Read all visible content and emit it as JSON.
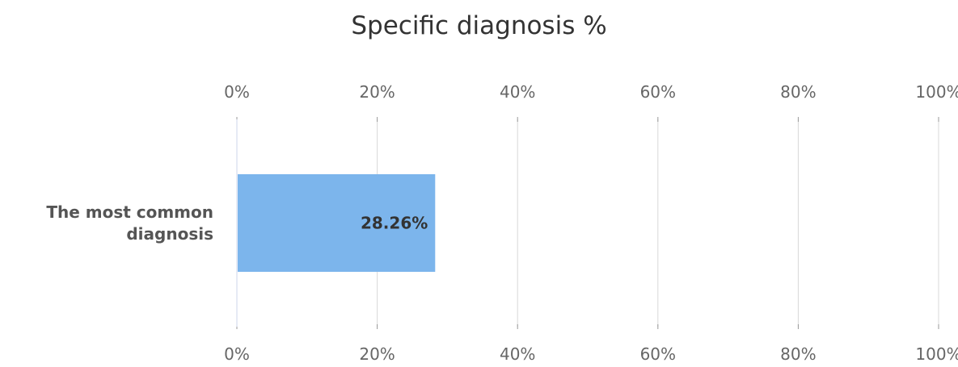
{
  "chart_data": {
    "type": "bar",
    "orientation": "horizontal",
    "title": "Specific diagnosis %",
    "categories": [
      [
        "The most common",
        "diagnosis"
      ]
    ],
    "values": [
      28.26
    ],
    "data_labels": [
      "28.26%"
    ],
    "xlim": [
      0,
      100
    ],
    "x_ticks": [
      "0%",
      "20%",
      "40%",
      "60%",
      "80%",
      "100%"
    ],
    "x_axis_position": "top and bottom",
    "grid": true,
    "legend": "none",
    "colors": {
      "bar": "#7cb5ec",
      "grid": "#d8d8d8",
      "axis": "#ccd6eb",
      "text": "#333333",
      "tick_text": "#666666"
    }
  }
}
